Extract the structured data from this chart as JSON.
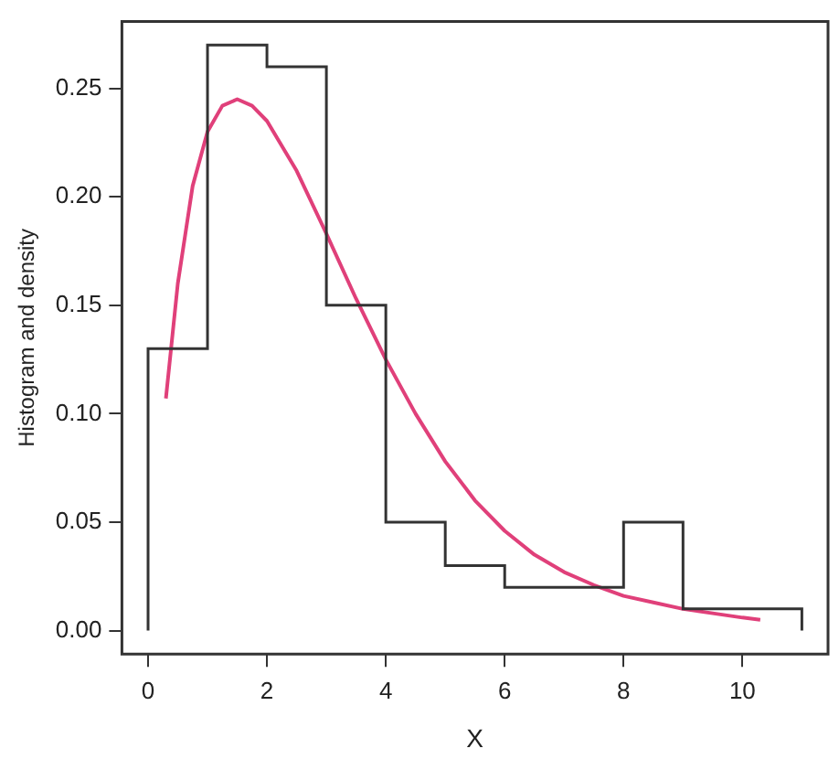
{
  "chart_data": {
    "type": "histogram",
    "xlabel": "X",
    "ylabel": "Histogram and density",
    "xlim": [
      -0.44,
      11.44
    ],
    "ylim": [
      -0.0108,
      0.2808
    ],
    "xticks": [
      0,
      2,
      4,
      6,
      8,
      10
    ],
    "yticks": [
      {
        "value": 0,
        "label": "0.00"
      },
      0.05,
      {
        "value": 0.1,
        "label": "0.10"
      },
      0.15,
      {
        "value": 0.2,
        "label": "0.20"
      },
      0.25
    ],
    "grid": false,
    "legend": false,
    "series": [
      {
        "type": "histogram",
        "color": "#333333",
        "bins": [
          0,
          1,
          2,
          3,
          4,
          5,
          6,
          7,
          8,
          9,
          10,
          11
        ],
        "values": [
          0.13,
          0.27,
          0.26,
          0.15,
          0.05,
          0.03,
          0.02,
          0.02,
          0.05,
          0.01,
          0.01
        ]
      },
      {
        "type": "line",
        "color": "#e0407a",
        "x": [
          0.3,
          0.5,
          0.75,
          1,
          1.25,
          1.5,
          1.75,
          2,
          2.5,
          3,
          3.5,
          4,
          4.5,
          5,
          5.5,
          6,
          6.5,
          7,
          7.5,
          8,
          8.5,
          9,
          9.5,
          10,
          10.3
        ],
        "values": [
          0.107,
          0.16,
          0.205,
          0.23,
          0.242,
          0.245,
          0.242,
          0.235,
          0.212,
          0.183,
          0.153,
          0.125,
          0.1,
          0.078,
          0.06,
          0.046,
          0.035,
          0.027,
          0.021,
          0.016,
          0.013,
          0.01,
          0.008,
          0.006,
          0.005
        ]
      }
    ]
  }
}
